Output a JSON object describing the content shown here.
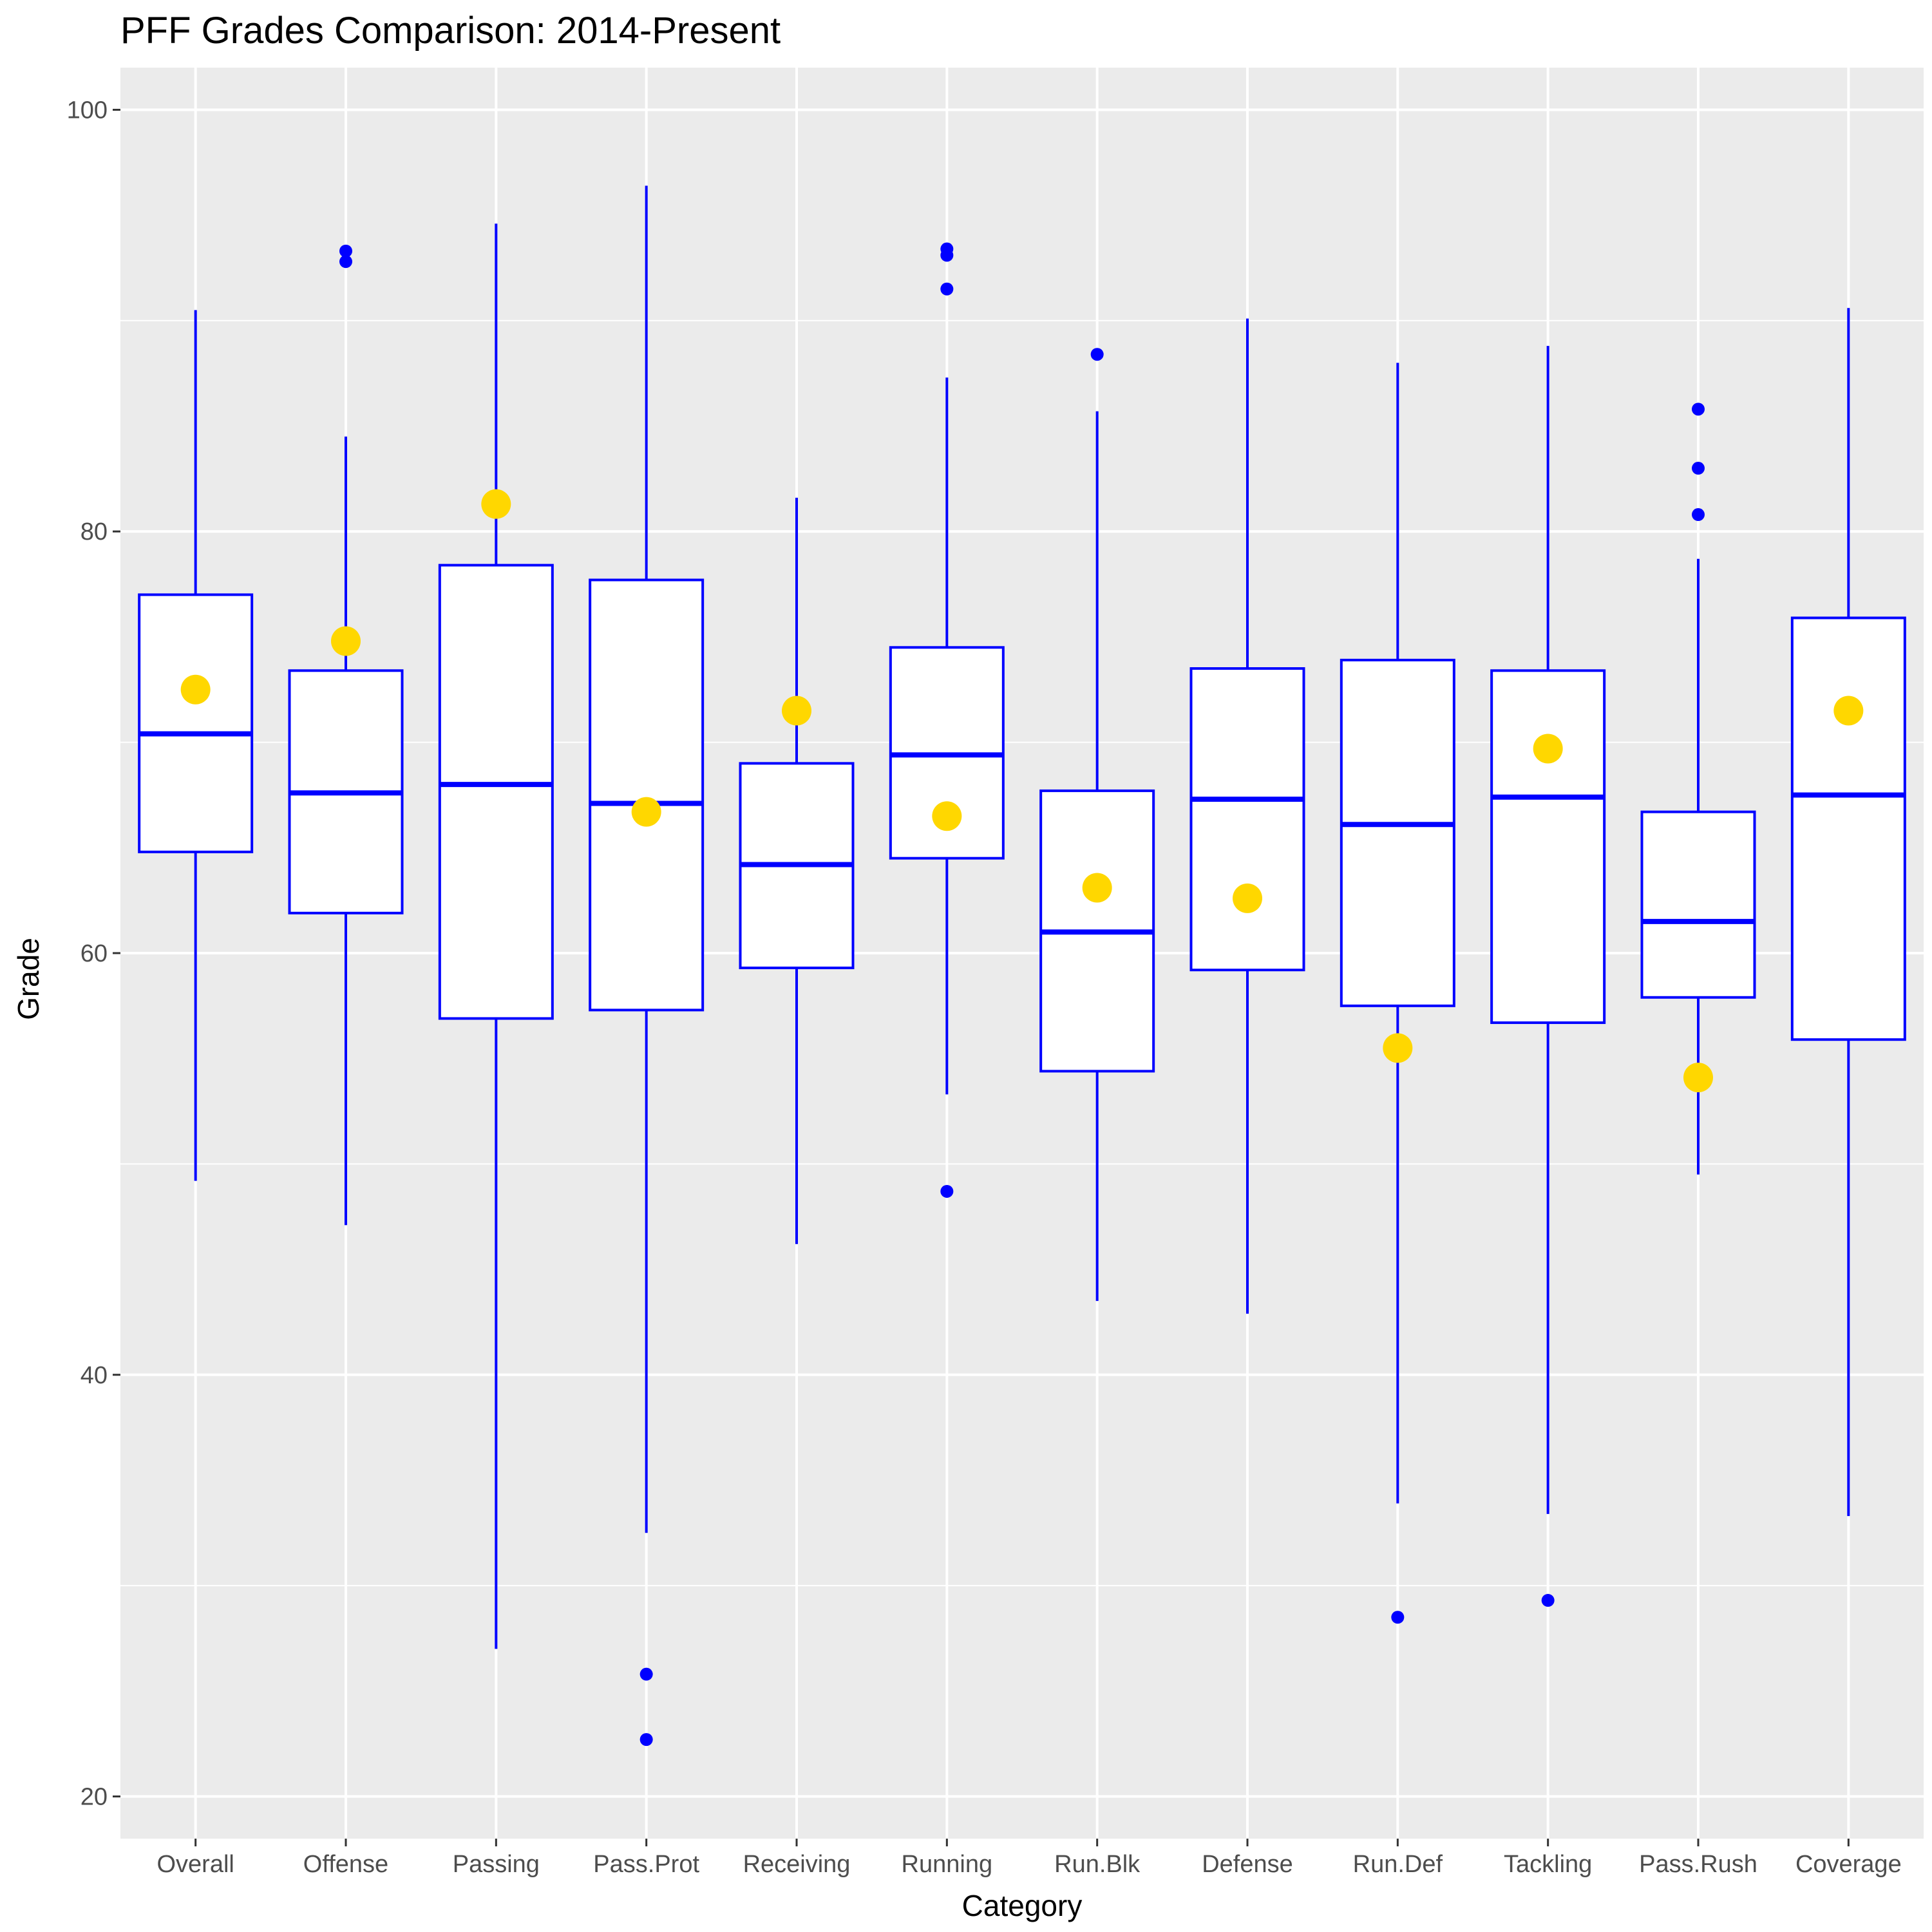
{
  "chart_data": {
    "type": "boxplot",
    "title": "PFF Grades Comparison: 2014-Present",
    "xlabel": "Category",
    "ylabel": "Grade",
    "ylim": [
      18,
      102
    ],
    "yticks": [
      20,
      40,
      60,
      80,
      100
    ],
    "grid": true,
    "colors": {
      "panel": "#ebebeb",
      "grid": "#ffffff",
      "box_stroke": "#0000ff",
      "box_fill": "#ffffff",
      "highlight_point": "#ffd700",
      "tick_text": "#4d4d4d"
    },
    "categories": [
      "Overall",
      "Offense",
      "Passing",
      "Pass.Prot",
      "Receiving",
      "Running",
      "Run.Blk",
      "Defense",
      "Run.Def",
      "Tackling",
      "Pass.Rush",
      "Coverage"
    ],
    "boxes": [
      {
        "category": "Overall",
        "whisker_low": 49.2,
        "q1": 64.8,
        "median": 70.4,
        "q3": 77.0,
        "whisker_high": 90.5,
        "outliers": [],
        "highlight": 72.5
      },
      {
        "category": "Offense",
        "whisker_low": 47.1,
        "q1": 61.9,
        "median": 67.6,
        "q3": 73.4,
        "whisker_high": 84.5,
        "outliers": [
          93.3,
          92.8
        ],
        "highlight": 74.8
      },
      {
        "category": "Passing",
        "whisker_low": 27.0,
        "q1": 56.9,
        "median": 68.0,
        "q3": 78.4,
        "whisker_high": 94.6,
        "outliers": [],
        "highlight": 81.3
      },
      {
        "category": "Pass.Prot",
        "whisker_low": 32.5,
        "q1": 57.3,
        "median": 67.1,
        "q3": 77.7,
        "whisker_high": 96.4,
        "outliers": [
          25.8,
          22.7
        ],
        "highlight": 66.7
      },
      {
        "category": "Receiving",
        "whisker_low": 46.2,
        "q1": 59.3,
        "median": 64.2,
        "q3": 69.0,
        "whisker_high": 81.6,
        "outliers": [],
        "highlight": 71.5
      },
      {
        "category": "Running",
        "whisker_low": 53.3,
        "q1": 64.5,
        "median": 69.4,
        "q3": 74.5,
        "whisker_high": 87.3,
        "outliers": [
          93.4,
          93.1,
          91.5,
          48.7
        ],
        "highlight": 66.5
      },
      {
        "category": "Run.Blk",
        "whisker_low": 43.5,
        "q1": 54.4,
        "median": 61.0,
        "q3": 67.7,
        "whisker_high": 85.7,
        "outliers": [
          88.4
        ],
        "highlight": 63.1
      },
      {
        "category": "Defense",
        "whisker_low": 42.9,
        "q1": 59.2,
        "median": 67.3,
        "q3": 73.5,
        "whisker_high": 90.1,
        "outliers": [],
        "highlight": 62.6
      },
      {
        "category": "Run.Def",
        "whisker_low": 33.9,
        "q1": 57.5,
        "median": 66.1,
        "q3": 73.9,
        "whisker_high": 88.0,
        "outliers": [
          28.5
        ],
        "highlight": 55.5
      },
      {
        "category": "Tackling",
        "whisker_low": 33.4,
        "q1": 56.7,
        "median": 67.4,
        "q3": 73.4,
        "whisker_high": 88.8,
        "outliers": [
          29.3
        ],
        "highlight": 69.7
      },
      {
        "category": "Pass.Rush",
        "whisker_low": 49.5,
        "q1": 57.9,
        "median": 61.5,
        "q3": 66.7,
        "whisker_high": 78.7,
        "outliers": [
          85.8,
          83.0,
          80.8
        ],
        "highlight": 54.1
      },
      {
        "category": "Coverage",
        "whisker_low": 33.3,
        "q1": 55.9,
        "median": 67.5,
        "q3": 75.9,
        "whisker_high": 90.6,
        "outliers": [],
        "highlight": 71.5
      }
    ]
  }
}
